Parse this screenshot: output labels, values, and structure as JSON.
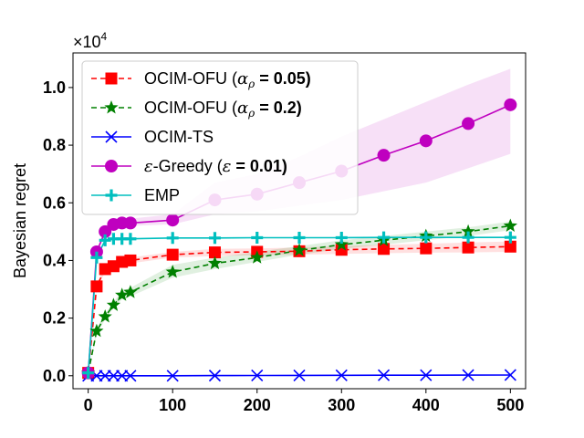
{
  "chart_data": {
    "type": "line",
    "title": "",
    "xlabel": "",
    "ylabel": "Bayesian regret",
    "scale_label": "×10",
    "scale_exponent": "4",
    "xlim": [
      -18,
      518
    ],
    "ylim": [
      -0.045,
      1.12
    ],
    "xticks": [
      0,
      100,
      200,
      300,
      400,
      500
    ],
    "xtick_labels": [
      "0",
      "100",
      "200",
      "300",
      "400",
      "500"
    ],
    "yticks": [
      0.0,
      0.2,
      0.4,
      0.6,
      0.8,
      1.0
    ],
    "ytick_labels": [
      "0.0",
      "0.2",
      "0.4",
      "0.6",
      "0.8",
      "1.0"
    ],
    "legend_position": "top-left",
    "series": [
      {
        "name": "OCIM-OFU (αρ = 0.05)",
        "legend_main": "OCIM-OFU (",
        "legend_sym": "α",
        "legend_sub": "ρ",
        "legend_tail": " = 0.05)",
        "color": "#ff0000",
        "dash": "6,4",
        "marker": "square",
        "band": true,
        "x": [
          0,
          10,
          20,
          30,
          40,
          50,
          100,
          150,
          200,
          250,
          300,
          350,
          400,
          450,
          500
        ],
        "y": [
          0.01,
          0.31,
          0.37,
          0.38,
          0.395,
          0.4,
          0.42,
          0.428,
          0.43,
          0.432,
          0.437,
          0.44,
          0.442,
          0.445,
          0.448
        ],
        "band_lo": [
          0.01,
          0.3,
          0.36,
          0.37,
          0.385,
          0.39,
          0.41,
          0.415,
          0.418,
          0.42,
          0.423,
          0.425,
          0.427,
          0.428,
          0.43
        ],
        "band_hi": [
          0.01,
          0.32,
          0.38,
          0.39,
          0.405,
          0.41,
          0.43,
          0.44,
          0.442,
          0.445,
          0.45,
          0.455,
          0.458,
          0.462,
          0.466
        ]
      },
      {
        "name": "OCIM-OFU (αρ = 0.2)",
        "legend_main": "OCIM-OFU (",
        "legend_sym": "α",
        "legend_sub": "ρ",
        "legend_tail": " = 0.2)",
        "color": "#008000",
        "dash": "6,4",
        "marker": "star",
        "band": true,
        "x": [
          0,
          10,
          20,
          30,
          40,
          50,
          100,
          150,
          200,
          250,
          300,
          350,
          400,
          450,
          500
        ],
        "y": [
          0.01,
          0.155,
          0.205,
          0.245,
          0.28,
          0.29,
          0.36,
          0.39,
          0.41,
          0.435,
          0.455,
          0.47,
          0.485,
          0.5,
          0.52
        ],
        "band_lo": [
          0.01,
          0.145,
          0.195,
          0.235,
          0.265,
          0.275,
          0.34,
          0.37,
          0.395,
          0.42,
          0.44,
          0.455,
          0.47,
          0.485,
          0.505
        ],
        "band_hi": [
          0.01,
          0.165,
          0.215,
          0.255,
          0.295,
          0.305,
          0.385,
          0.41,
          0.43,
          0.45,
          0.47,
          0.485,
          0.5,
          0.515,
          0.535
        ]
      },
      {
        "name": "OCIM-TS",
        "legend_main": "OCIM-TS",
        "color": "#0000ff",
        "dash": "",
        "marker": "x",
        "band": false,
        "x": [
          0,
          10,
          20,
          30,
          40,
          50,
          100,
          150,
          200,
          250,
          300,
          350,
          400,
          450,
          500
        ],
        "y": [
          0.0,
          0.0,
          0.0,
          0.0,
          0.0,
          0.0,
          0.0,
          0.0005,
          0.001,
          0.0012,
          0.0015,
          0.0018,
          0.002,
          0.0022,
          0.0025
        ]
      },
      {
        "name": "ε-Greedy (ε = 0.01)",
        "legend_main": "-Greedy (",
        "legend_sym": "ε",
        "legend_tail": " = 0.01)",
        "color": "#bf00bf",
        "dash": "",
        "marker": "circle",
        "band": true,
        "x": [
          0,
          10,
          20,
          30,
          40,
          50,
          100,
          150,
          200,
          250,
          300,
          350,
          400,
          450,
          500
        ],
        "y": [
          0.01,
          0.43,
          0.5,
          0.525,
          0.53,
          0.53,
          0.54,
          0.61,
          0.63,
          0.67,
          0.71,
          0.765,
          0.815,
          0.875,
          0.94
        ],
        "band_lo": [
          0.01,
          0.42,
          0.49,
          0.515,
          0.52,
          0.52,
          0.525,
          0.56,
          0.57,
          0.59,
          0.61,
          0.64,
          0.67,
          0.72,
          0.77
        ],
        "band_hi": [
          0.01,
          0.44,
          0.51,
          0.535,
          0.54,
          0.545,
          0.56,
          0.67,
          0.7,
          0.76,
          0.83,
          0.89,
          0.95,
          1.01,
          1.065
        ]
      },
      {
        "name": "EMP",
        "legend_main": "EMP",
        "color": "#00bfbf",
        "dash": "",
        "marker": "plus",
        "band": false,
        "x": [
          0,
          10,
          20,
          30,
          40,
          50,
          100,
          150,
          200,
          250,
          300,
          350,
          400,
          450,
          500
        ],
        "y": [
          0.01,
          0.41,
          0.47,
          0.475,
          0.475,
          0.475,
          0.478,
          0.478,
          0.479,
          0.479,
          0.479,
          0.48,
          0.48,
          0.48,
          0.48
        ]
      }
    ]
  }
}
